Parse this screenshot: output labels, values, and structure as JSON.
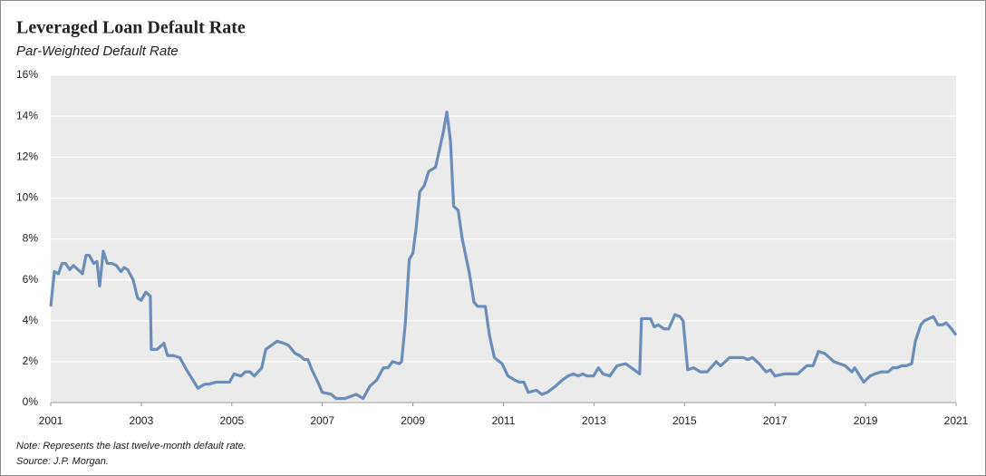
{
  "chart_data": {
    "type": "line",
    "title": "Leveraged Loan Default Rate",
    "subtitle": "Par-Weighted Default Rate",
    "notes": [
      "Note: Represents the last twelve-month default rate.",
      "Source: J.P. Morgan."
    ],
    "color": "#6b8db8",
    "grid": true,
    "xlim": [
      2001,
      2021
    ],
    "xticks": [
      2001,
      2003,
      2005,
      2007,
      2009,
      2011,
      2013,
      2015,
      2017,
      2019,
      2021
    ],
    "ylim": [
      0,
      16
    ],
    "yticks": [
      {
        "value": 0,
        "label": "0%"
      },
      {
        "value": 2,
        "label": "2%"
      },
      {
        "value": 4,
        "label": "4%"
      },
      {
        "value": 6,
        "label": "6%"
      },
      {
        "value": 8,
        "label": "8%"
      },
      {
        "value": 10,
        "label": "10%"
      },
      {
        "value": 12,
        "label": "12%"
      },
      {
        "value": 14,
        "label": "14%"
      },
      {
        "value": 16,
        "label": "16%"
      }
    ],
    "x": [
      2001.0,
      2001.08,
      2001.17,
      2001.25,
      2001.33,
      2001.42,
      2001.5,
      2001.6,
      2001.7,
      2001.78,
      2001.85,
      2001.95,
      2002.02,
      2002.08,
      2002.16,
      2002.25,
      2002.35,
      2002.45,
      2002.55,
      2002.62,
      2002.7,
      2002.82,
      2002.92,
      2003.0,
      2003.1,
      2003.2,
      2003.22,
      2003.35,
      2003.5,
      2003.58,
      2003.7,
      2003.85,
      2004.0,
      2004.14,
      2004.25,
      2004.4,
      2004.5,
      2004.65,
      2004.85,
      2004.95,
      2005.05,
      2005.2,
      2005.3,
      2005.4,
      2005.5,
      2005.58,
      2005.66,
      2005.75,
      2006.0,
      2006.15,
      2006.25,
      2006.4,
      2006.5,
      2006.6,
      2006.68,
      2006.77,
      2006.9,
      2007.0,
      2007.2,
      2007.3,
      2007.5,
      2007.75,
      2007.9,
      2008.05,
      2008.2,
      2008.35,
      2008.45,
      2008.55,
      2008.7,
      2008.75,
      2008.83,
      2008.92,
      2009.0,
      2009.07,
      2009.15,
      2009.25,
      2009.35,
      2009.5,
      2009.6,
      2009.67,
      2009.75,
      2009.83,
      2009.9,
      2010.0,
      2010.09,
      2010.25,
      2010.35,
      2010.43,
      2010.6,
      2010.69,
      2010.8,
      2010.97,
      2011.1,
      2011.25,
      2011.35,
      2011.45,
      2011.55,
      2011.73,
      2011.85,
      2011.97,
      2012.15,
      2012.3,
      2012.43,
      2012.55,
      2012.65,
      2012.75,
      2012.85,
      2012.99,
      2013.1,
      2013.2,
      2013.35,
      2013.51,
      2013.7,
      2013.89,
      2014.01,
      2014.05,
      2014.25,
      2014.33,
      2014.42,
      2014.55,
      2014.65,
      2014.79,
      2014.9,
      2014.97,
      2015.07,
      2015.2,
      2015.35,
      2015.5,
      2015.7,
      2015.8,
      2016.0,
      2016.15,
      2016.3,
      2016.4,
      2016.5,
      2016.65,
      2016.8,
      2016.9,
      2017.0,
      2017.2,
      2017.5,
      2017.7,
      2017.84,
      2017.96,
      2018.1,
      2018.3,
      2018.55,
      2018.7,
      2018.76,
      2018.96,
      2019.1,
      2019.2,
      2019.35,
      2019.5,
      2019.6,
      2019.7,
      2019.8,
      2019.9,
      2020.02,
      2020.1,
      2020.22,
      2020.3,
      2020.4,
      2020.5,
      2020.6,
      2020.7,
      2020.78,
      2020.9,
      2021.0
    ],
    "series": [
      {
        "values": [
          4.7,
          6.4,
          6.3,
          6.8,
          6.8,
          6.5,
          6.7,
          6.5,
          6.3,
          7.2,
          7.2,
          6.8,
          6.9,
          5.7,
          7.4,
          6.8,
          6.8,
          6.7,
          6.4,
          6.6,
          6.5,
          6.0,
          5.1,
          5.0,
          5.4,
          5.2,
          2.6,
          2.6,
          2.9,
          2.3,
          2.3,
          2.2,
          1.6,
          1.1,
          0.7,
          0.9,
          0.9,
          1.0,
          1.0,
          1.0,
          1.4,
          1.3,
          1.5,
          1.5,
          1.3,
          1.5,
          1.7,
          2.6,
          3.0,
          2.9,
          2.8,
          2.4,
          2.3,
          2.1,
          2.1,
          1.6,
          1.0,
          0.5,
          0.4,
          0.2,
          0.2,
          0.4,
          0.2,
          0.8,
          1.1,
          1.7,
          1.7,
          2.0,
          1.9,
          2.0,
          3.8,
          7.0,
          7.3,
          8.5,
          10.3,
          10.6,
          11.3,
          11.5,
          12.5,
          13.2,
          14.2,
          12.8,
          9.6,
          9.4,
          8.0,
          6.3,
          4.9,
          4.7,
          4.7,
          3.3,
          2.2,
          1.9,
          1.3,
          1.1,
          1.0,
          1.0,
          0.5,
          0.6,
          0.4,
          0.5,
          0.8,
          1.1,
          1.3,
          1.4,
          1.3,
          1.4,
          1.3,
          1.3,
          1.7,
          1.4,
          1.3,
          1.8,
          1.9,
          1.6,
          1.4,
          4.1,
          4.1,
          3.7,
          3.8,
          3.6,
          3.6,
          4.3,
          4.2,
          4.0,
          1.6,
          1.7,
          1.5,
          1.5,
          2.0,
          1.8,
          2.2,
          2.2,
          2.2,
          2.1,
          2.2,
          1.9,
          1.5,
          1.6,
          1.3,
          1.4,
          1.4,
          1.8,
          1.8,
          2.5,
          2.4,
          2.0,
          1.8,
          1.5,
          1.7,
          1.0,
          1.3,
          1.4,
          1.5,
          1.5,
          1.7,
          1.7,
          1.8,
          1.8,
          1.9,
          3.0,
          3.8,
          4.0,
          4.1,
          4.2,
          3.8,
          3.8,
          3.9,
          3.6,
          3.3
        ]
      }
    ]
  }
}
